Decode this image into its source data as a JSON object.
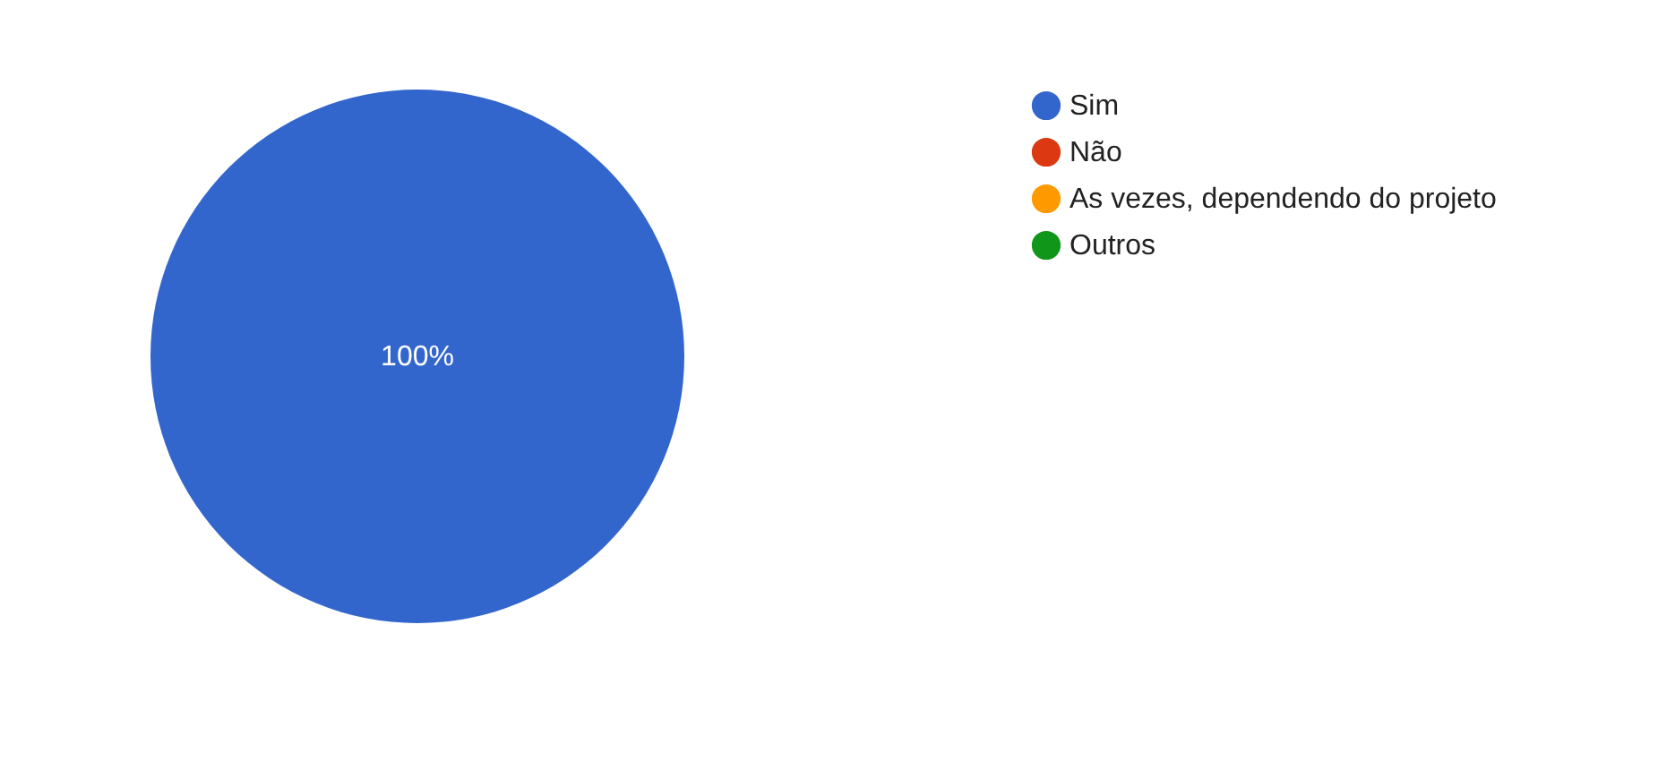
{
  "chart_data": {
    "type": "pie",
    "categories": [
      "Sim",
      "Não",
      "As vezes, dependendo do projeto",
      "Outros"
    ],
    "values": [
      100,
      0,
      0,
      0
    ],
    "colors": [
      "#3366cc",
      "#dc3912",
      "#ff9900",
      "#109618"
    ],
    "value_labels": [
      "100%",
      null,
      null,
      null
    ],
    "legend": "top right"
  }
}
